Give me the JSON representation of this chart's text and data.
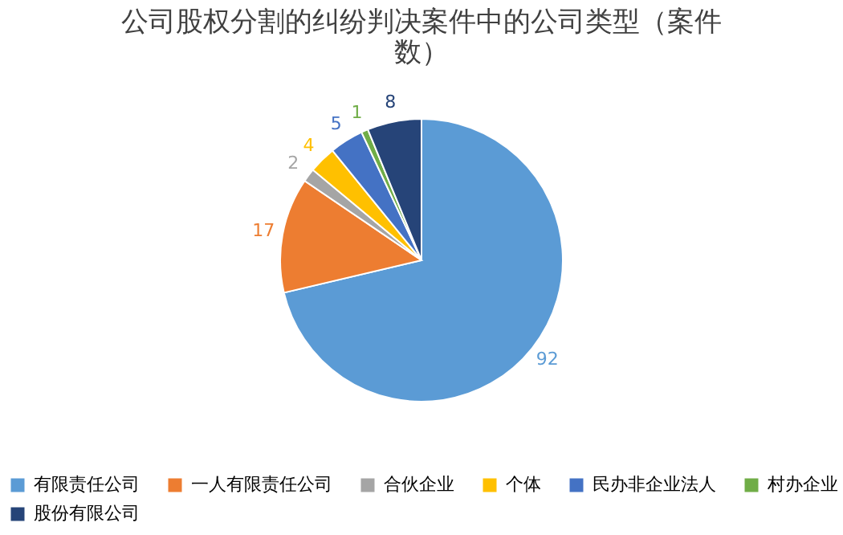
{
  "chart_data": {
    "type": "pie",
    "title": "公司股权分割的纠纷判决案件中的公司类型（案件数）",
    "categories": [
      "有限责任公司",
      "一人有限责任公司",
      "合伙企业",
      "个体",
      "民办非企业法人",
      "村办企业",
      "股份有限公司"
    ],
    "values": [
      92,
      17,
      2,
      4,
      5,
      1,
      8
    ],
    "colors": [
      "#5b9bd5",
      "#ed7d31",
      "#a5a5a5",
      "#ffc000",
      "#4472c4",
      "#70ad47",
      "#264478"
    ],
    "data_labels": true,
    "legend": "bottom"
  }
}
